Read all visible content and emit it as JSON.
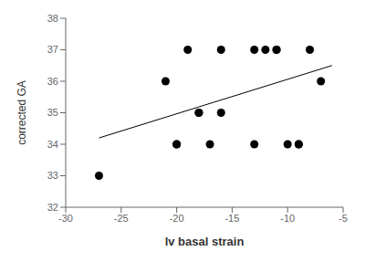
{
  "chart_data": {
    "type": "scatter",
    "xlabel": "lv basal strain",
    "ylabel": "corrected GA",
    "xlim": [
      -30,
      -5
    ],
    "xticks": [
      -30,
      -25,
      -20,
      -15,
      -10,
      -5
    ],
    "ylim": [
      32,
      38
    ],
    "yticks": [
      32,
      33,
      34,
      35,
      36,
      37,
      38
    ],
    "grid": false,
    "series": [
      {
        "type": "scatter",
        "color": "#000000",
        "x": [
          -27,
          -21,
          -20,
          -20,
          -19,
          -18,
          -18,
          -17,
          -16,
          -16,
          -13,
          -13,
          -12,
          -11,
          -11,
          -10,
          -9,
          -9,
          -8,
          -7
        ],
        "values": [
          33,
          36,
          34,
          34,
          37,
          35,
          35,
          34,
          37,
          35,
          37,
          34,
          37,
          37,
          37,
          34,
          34,
          34,
          37,
          36
        ]
      },
      {
        "type": "line",
        "color": "#000000",
        "x": [
          -27,
          -6
        ],
        "values": [
          34.2,
          36.5
        ]
      }
    ]
  }
}
